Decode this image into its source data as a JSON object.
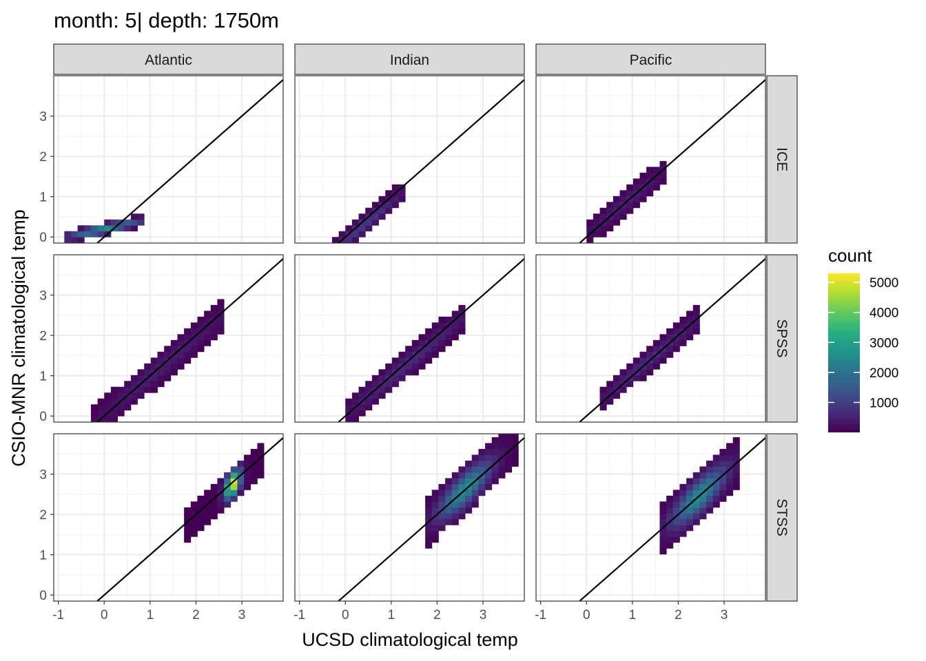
{
  "chart_data": {
    "type": "heatmap",
    "title": "month: 5| depth: 1750m",
    "xlabel": "UCSD climatological temp",
    "ylabel": "CSIO-MNR climatological temp",
    "columns": [
      "Atlantic",
      "Indian",
      "Pacific"
    ],
    "rows": [
      "ICE",
      "SPSS",
      "STSS"
    ],
    "xlim": [
      -1.1,
      3.9
    ],
    "ylim": [
      -0.15,
      4.0
    ],
    "x_ticks": [
      -1,
      0,
      1,
      2,
      3
    ],
    "y_ticks": [
      0,
      1,
      2,
      3
    ],
    "grid": true,
    "reference_line": "y = x",
    "bin_width": 0.145,
    "legend": {
      "title": "count",
      "position": "right",
      "colormap": "viridis",
      "range": [
        1,
        5300
      ],
      "ticks": [
        1000,
        2000,
        3000,
        4000,
        5000
      ]
    },
    "panels": [
      {
        "ocean": "Atlantic",
        "region": "ICE",
        "blobs": [
          {
            "x_range": [
              -0.85,
              0.75
            ],
            "center": [
              0.0,
              0.2
            ],
            "slope": 0.25,
            "half_width": 0.17,
            "spread": 0.55,
            "peak": 2500
          }
        ]
      },
      {
        "ocean": "Indian",
        "region": "ICE",
        "blobs": [
          {
            "x_range": [
              -0.15,
              1.3
            ],
            "center": [
              0.4,
              0.3
            ],
            "slope": 0.95,
            "half_width": 0.28,
            "spread": 0.55,
            "peak": 900
          }
        ]
      },
      {
        "ocean": "Pacific",
        "region": "ICE",
        "blobs": [
          {
            "x_range": [
              0.1,
              1.6
            ],
            "center": [
              0.85,
              0.85
            ],
            "slope": 0.95,
            "half_width": 0.32,
            "spread": 0.6,
            "peak": 500
          }
        ]
      },
      {
        "ocean": "Atlantic",
        "region": "SPSS",
        "blobs": [
          {
            "x_range": [
              -0.2,
              2.6
            ],
            "center": [
              1.25,
              1.22
            ],
            "slope": 0.95,
            "half_width": 0.42,
            "spread": 1.1,
            "peak": 450
          }
        ]
      },
      {
        "ocean": "Indian",
        "region": "SPSS",
        "blobs": [
          {
            "x_range": [
              0.0,
              2.6
            ],
            "center": [
              1.35,
              1.3
            ],
            "slope": 0.95,
            "half_width": 0.38,
            "spread": 1.0,
            "peak": 650
          }
        ]
      },
      {
        "ocean": "Pacific",
        "region": "SPSS",
        "blobs": [
          {
            "x_range": [
              0.35,
              2.45
            ],
            "center": [
              1.4,
              1.42
            ],
            "slope": 0.95,
            "half_width": 0.32,
            "spread": 0.85,
            "peak": 650
          }
        ]
      },
      {
        "ocean": "Atlantic",
        "region": "STSS",
        "blobs": [
          {
            "x_range": [
              1.8,
              3.35
            ],
            "center": [
              2.8,
              2.75
            ],
            "slope": 1.0,
            "half_width": 0.45,
            "spread": 0.12,
            "peak": 5200
          }
        ]
      },
      {
        "ocean": "Indian",
        "region": "STSS",
        "blobs": [
          {
            "x_range": [
              1.75,
              3.65
            ],
            "center": [
              2.6,
              2.62
            ],
            "slope": 1.0,
            "half_width": 0.6,
            "spread": 0.4,
            "peak": 2600
          }
        ]
      },
      {
        "ocean": "Pacific",
        "region": "STSS",
        "blobs": [
          {
            "x_range": [
              1.6,
              3.3
            ],
            "center": [
              2.45,
              2.45
            ],
            "slope": 1.0,
            "half_width": 0.62,
            "spread": 0.4,
            "peak": 2600
          }
        ]
      }
    ]
  }
}
